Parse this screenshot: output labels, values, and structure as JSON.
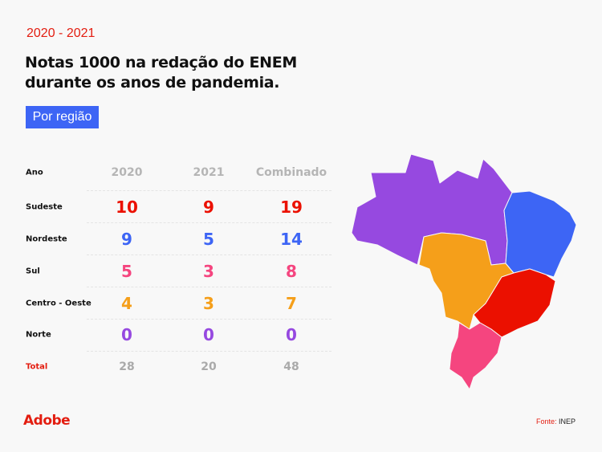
{
  "header": {
    "years": "2020 - 2021",
    "title_line1": "Notas 1000 na redação do ENEM",
    "title_line2": "durante os anos de pandemia.",
    "tag": "Por região"
  },
  "chart_data": {
    "type": "table",
    "columns": [
      "Ano",
      "2020",
      "2021",
      "Combinado"
    ],
    "rows": [
      {
        "region": "Sudeste",
        "values": [
          "10",
          "9",
          "19"
        ],
        "color": "#eb1000"
      },
      {
        "region": "Nordeste",
        "values": [
          "9",
          "5",
          "14"
        ],
        "color": "#3d65f5"
      },
      {
        "region": "Sul",
        "values": [
          "5",
          "3",
          "8"
        ],
        "color": "#f5457f"
      },
      {
        "region": "Centro - Oeste",
        "values": [
          "4",
          "3",
          "7"
        ],
        "color": "#f59f1a"
      },
      {
        "region": "Norte",
        "values": [
          "0",
          "0",
          "0"
        ],
        "color": "#9649e0"
      }
    ],
    "total": {
      "label": "Total",
      "values": [
        "28",
        "20",
        "48"
      ]
    },
    "map": "Brazil regions colored by region"
  },
  "footer": {
    "logo": "Adobe",
    "source_label": "Fonte:",
    "source": "INEP"
  }
}
